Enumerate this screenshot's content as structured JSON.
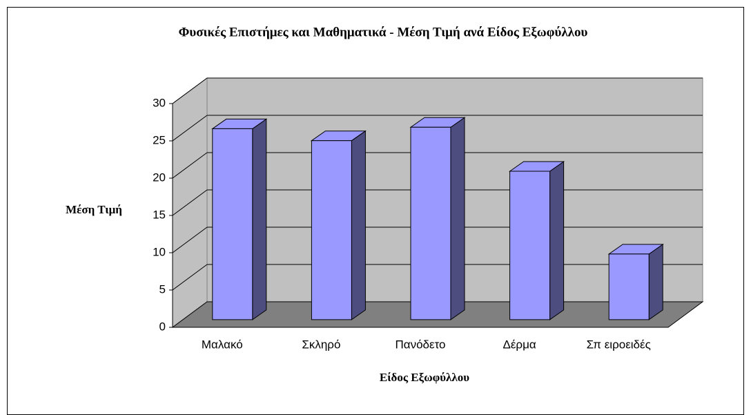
{
  "chart_data": {
    "type": "bar3d",
    "title": "Φυσικές Επιστήμες και Μαθηματικά - Μέση Τιμή ανά Είδος Εξωφύλλου",
    "y_label": "Μέση Τιμή",
    "x_label": "Είδος Εξωφύλλου",
    "categories": [
      "Μαλακό",
      "Σκληρό",
      "Πανόδετο",
      "Δέρμα",
      "Σπ ειροειδές"
    ],
    "values": [
      25.6,
      24,
      25.8,
      19.9,
      8.8
    ],
    "color": "#9999ff",
    "ylim": [
      0,
      30
    ],
    "yticks": [
      0,
      5,
      10,
      15,
      20,
      25,
      30
    ],
    "grid": true
  }
}
